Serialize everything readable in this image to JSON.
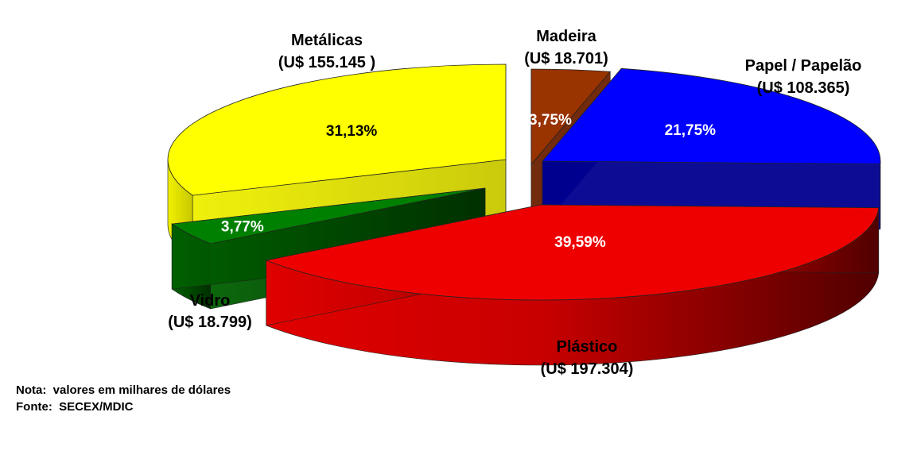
{
  "chart_data": {
    "type": "pie",
    "title": "",
    "slices": [
      {
        "category": "Madeira",
        "value_label": "(U$ 18.701)",
        "value": 18701,
        "percent": "3,75%",
        "color": "#993300"
      },
      {
        "category": "Papel / Papelão",
        "value_label": "(U$ 108.365)",
        "value": 108365,
        "percent": "21,75%",
        "color": "#0000FF"
      },
      {
        "category": "Plástico",
        "value_label": "(U$ 197.304)",
        "value": 197304,
        "percent": "39,59%",
        "color": "#FF0000"
      },
      {
        "category": "Vidro",
        "value_label": "(U$ 18.799)",
        "value": 18799,
        "percent": "3,77%",
        "color": "#008000"
      },
      {
        "category": "Metálicas",
        "value_label": "(U$ 155.145 )",
        "value": 155145,
        "percent": "31,13%",
        "color": "#FFFF00"
      }
    ]
  },
  "notes": {
    "nota": "Nota:  valores em milhares de dólares",
    "fonte": "Fonte:  SECEX/MDIC"
  }
}
